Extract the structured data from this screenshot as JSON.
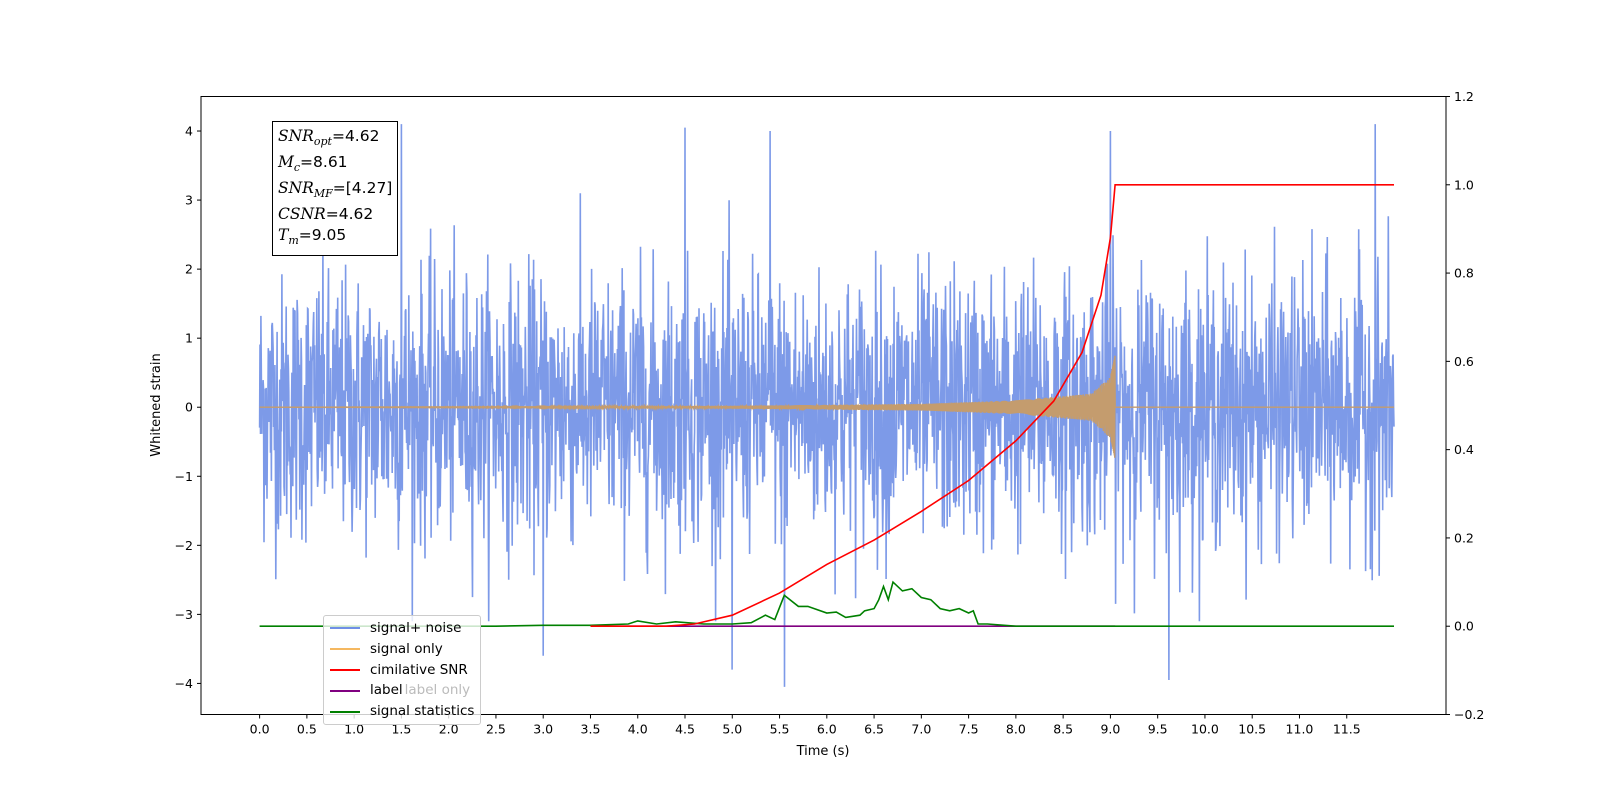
{
  "chart_data": {
    "type": "line",
    "xlabel": "Time (s)",
    "ylabel_left": "Whitened strain",
    "ylabel_right": "",
    "xlim": [
      -0.62,
      12.55
    ],
    "ylim_left": [
      -4.45,
      4.5
    ],
    "ylim_right": [
      -0.2,
      1.2
    ],
    "x_ticks": [
      "0.0",
      "0.5",
      "1.0",
      "1.5",
      "2.0",
      "2.5",
      "3.0",
      "3.5",
      "4.0",
      "4.5",
      "5.0",
      "5.5",
      "6.0",
      "6.5",
      "7.0",
      "7.5",
      "8.0",
      "8.5",
      "9.0",
      "9.5",
      "10.0",
      "10.5",
      "11.0",
      "11.5"
    ],
    "y_ticks_left": [
      "4",
      "3",
      "2",
      "1",
      "0",
      "−1",
      "−2",
      "−3",
      "−4"
    ],
    "y_ticks_right": [
      "1.2",
      "1.0",
      "0.8",
      "0.6",
      "0.4",
      "0.2",
      "0.0",
      "−0.2"
    ],
    "grid": false,
    "legend_position": "lower-left",
    "series": [
      {
        "name": "signal+ noise",
        "color": "#6f8fe6",
        "axis": "left",
        "description_hint": "dense whitened noise, envelope roughly +/-2.5 with spikes to about +/-4",
        "x_range": [
          0.0,
          12.0
        ],
        "approx_envelope": [
          -2.6,
          2.5
        ],
        "notable_peaks": [
          [
            1.5,
            4.1
          ],
          [
            4.5,
            4.05
          ],
          [
            5.4,
            4.0
          ],
          [
            9.0,
            4.0
          ],
          [
            11.8,
            4.1
          ],
          [
            5.55,
            -4.05
          ],
          [
            9.62,
            -3.95
          ],
          [
            5.0,
            -3.8
          ],
          [
            3.0,
            -3.6
          ]
        ]
      },
      {
        "name": "signal only",
        "color": "#f5b860",
        "axis": "left",
        "description_hint": "chirp signal growing until merger",
        "merger_time": 9.05,
        "peak_amplitude": 0.8,
        "points": [
          [
            0.0,
            0.0
          ],
          [
            3.5,
            0.01
          ],
          [
            5.0,
            0.02
          ],
          [
            7.0,
            0.05
          ],
          [
            8.0,
            0.1
          ],
          [
            8.8,
            0.2
          ],
          [
            9.0,
            0.45
          ],
          [
            9.05,
            0.8
          ],
          [
            9.1,
            0.0
          ],
          [
            12.0,
            0.0
          ]
        ]
      },
      {
        "name": "cimilative SNR",
        "color": "#ff0000",
        "axis": "right",
        "points": [
          [
            3.5,
            0.0
          ],
          [
            4.3,
            0.0
          ],
          [
            4.6,
            0.005
          ],
          [
            5.0,
            0.025
          ],
          [
            5.5,
            0.075
          ],
          [
            6.0,
            0.14
          ],
          [
            6.5,
            0.195
          ],
          [
            7.0,
            0.26
          ],
          [
            7.5,
            0.33
          ],
          [
            8.0,
            0.42
          ],
          [
            8.4,
            0.51
          ],
          [
            8.7,
            0.62
          ],
          [
            8.9,
            0.75
          ],
          [
            9.0,
            0.88
          ],
          [
            9.05,
            1.0
          ],
          [
            12.0,
            1.0
          ]
        ]
      },
      {
        "name": "label",
        "color": "#800080",
        "axis": "right",
        "points": [
          [
            3.5,
            0.0
          ],
          [
            9.05,
            0.0
          ]
        ]
      },
      {
        "name": "signal statistics",
        "color": "#008000",
        "axis": "right",
        "points": [
          [
            0.0,
            0.0
          ],
          [
            2.5,
            0.0
          ],
          [
            3.0,
            0.002
          ],
          [
            3.5,
            0.002
          ],
          [
            3.9,
            0.005
          ],
          [
            4.0,
            0.012
          ],
          [
            4.2,
            0.005
          ],
          [
            4.4,
            0.01
          ],
          [
            4.7,
            0.005
          ],
          [
            5.0,
            0.005
          ],
          [
            5.2,
            0.008
          ],
          [
            5.35,
            0.025
          ],
          [
            5.45,
            0.015
          ],
          [
            5.55,
            0.07
          ],
          [
            5.7,
            0.045
          ],
          [
            5.8,
            0.045
          ],
          [
            6.0,
            0.03
          ],
          [
            6.1,
            0.032
          ],
          [
            6.2,
            0.02
          ],
          [
            6.35,
            0.025
          ],
          [
            6.4,
            0.035
          ],
          [
            6.5,
            0.04
          ],
          [
            6.55,
            0.06
          ],
          [
            6.6,
            0.09
          ],
          [
            6.65,
            0.06
          ],
          [
            6.7,
            0.1
          ],
          [
            6.8,
            0.08
          ],
          [
            6.9,
            0.085
          ],
          [
            7.0,
            0.065
          ],
          [
            7.1,
            0.06
          ],
          [
            7.2,
            0.04
          ],
          [
            7.3,
            0.035
          ],
          [
            7.4,
            0.04
          ],
          [
            7.5,
            0.03
          ],
          [
            7.55,
            0.035
          ],
          [
            7.6,
            0.005
          ],
          [
            7.7,
            0.005
          ],
          [
            8.0,
            0.0
          ],
          [
            12.0,
            0.0
          ]
        ]
      }
    ]
  },
  "info_box": {
    "snr_opt_label": "SNR",
    "snr_opt_sub": "opt",
    "snr_opt_value": "=4.62",
    "mc_label": "M",
    "mc_sub": "c",
    "mc_value": "=8.61",
    "snr_mf_label": "SNR",
    "snr_mf_sub": "MF",
    "snr_mf_value": "=[4.27]",
    "csnr_label": "CSNR",
    "csnr_value": "=4.62",
    "tm_label": "T",
    "tm_sub": "m",
    "tm_value": "=9.05"
  },
  "legend": {
    "items": [
      {
        "label": "signal+ noise",
        "color": "#6f8fe6"
      },
      {
        "label": "signal only",
        "color": "#f5b860"
      },
      {
        "label": "cimilative SNR",
        "color": "#ff0000"
      },
      {
        "label": "label",
        "color": "#800080"
      },
      {
        "label": "signal statistics",
        "color": "#008000"
      }
    ],
    "hidden_label": "label only"
  }
}
